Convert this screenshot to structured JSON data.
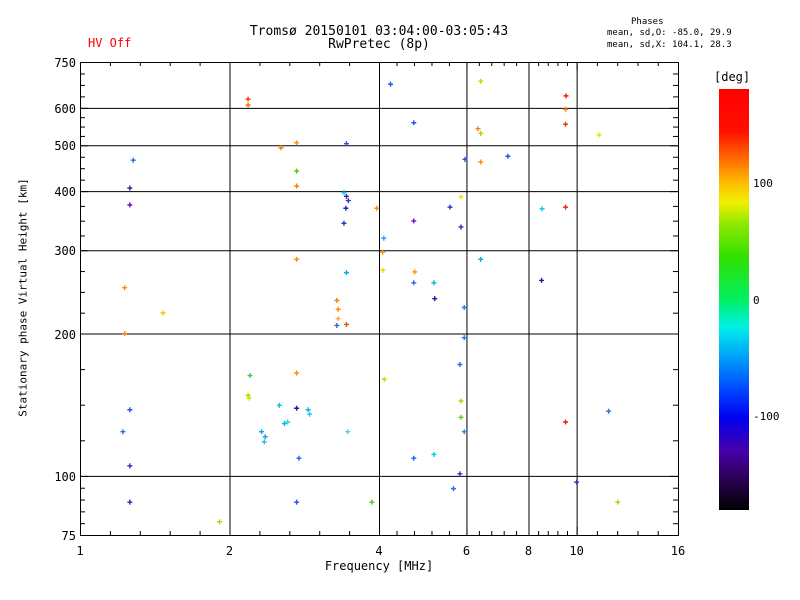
{
  "header": {
    "hv_status": "HV Off",
    "title": "Tromsø 20150101 03:04:00-03:05:43",
    "subtitle": "RwPretec (8p)",
    "phases_title": "Phases",
    "phases_mean_o": "mean, sd,O: -85.0, 29.9",
    "phases_mean_x": "mean, sd,X: 104.1, 28.3"
  },
  "colors": {
    "hv_status_red": "#ff0000",
    "axis_black": "#000000",
    "background": "#ffffff"
  },
  "chart_data": {
    "type": "scatter",
    "title": "Tromsø 20150101 03:04:00-03:05:43",
    "subtitle": "RwPretec (8p)",
    "xlabel": "Frequency [MHz]",
    "ylabel": "Stationary phase Virtual Height [km]",
    "xscale": "log",
    "yscale": "log",
    "xlim": [
      1,
      16
    ],
    "ylim": [
      75,
      750
    ],
    "xticks": [
      1,
      2,
      4,
      6,
      8,
      10,
      16
    ],
    "yticks": [
      750,
      600,
      500,
      400,
      300,
      200,
      100,
      75
    ],
    "grid_x": [
      2,
      4,
      6,
      8,
      10
    ],
    "grid_y": [
      600,
      500,
      400,
      300,
      200,
      100
    ],
    "minor_ticks_per_x_interval": 4,
    "minor_ticks_per_y_interval": [
      3,
      3,
      3,
      3,
      3,
      3,
      4
    ],
    "colorbar": {
      "label": "[deg]",
      "ticks": [
        100,
        0,
        -100
      ],
      "range": [
        -180,
        180
      ],
      "gradient_stops": [
        [
          0.0,
          "#ff0000"
        ],
        [
          0.1,
          "#ff1000"
        ],
        [
          0.17,
          "#ff7000"
        ],
        [
          0.225,
          "#ffc000"
        ],
        [
          0.27,
          "#f0f000"
        ],
        [
          0.32,
          "#90e800"
        ],
        [
          0.4,
          "#30e000"
        ],
        [
          0.5,
          "#00f060"
        ],
        [
          0.565,
          "#00f0e8"
        ],
        [
          0.63,
          "#00a8f8"
        ],
        [
          0.72,
          "#0040ff"
        ],
        [
          0.78,
          "#0000f0"
        ],
        [
          0.86,
          "#4800a8"
        ],
        [
          0.93,
          "#280050"
        ],
        [
          1.0,
          "#000000"
        ]
      ]
    },
    "points_columns": [
      "freq_mhz",
      "height_km",
      "color"
    ],
    "points": [
      [
        1.28,
        465,
        "#1c6ef0"
      ],
      [
        1.26,
        406,
        "#4a0d9e"
      ],
      [
        1.26,
        374,
        "#5a10b0"
      ],
      [
        1.23,
        250,
        "#ff8c00"
      ],
      [
        1.47,
        221,
        "#ffc400"
      ],
      [
        1.23,
        200,
        "#ff8c00"
      ],
      [
        1.26,
        138,
        "#2a52e8"
      ],
      [
        1.22,
        124,
        "#2a6cf0"
      ],
      [
        1.26,
        105,
        "#3a2fbf"
      ],
      [
        1.26,
        88,
        "#4a1da8"
      ],
      [
        1.91,
        80,
        "#b8d400"
      ],
      [
        2.18,
        626,
        "#f04000"
      ],
      [
        2.18,
        608,
        "#ff6a00"
      ],
      [
        2.73,
        506,
        "#ff8c00"
      ],
      [
        2.54,
        494,
        "#ff7a00"
      ],
      [
        3.44,
        504,
        "#2a52e8"
      ],
      [
        2.73,
        441,
        "#58c800"
      ],
      [
        2.73,
        410,
        "#ff7a00"
      ],
      [
        3.4,
        397,
        "#00c8f0"
      ],
      [
        3.44,
        390,
        "#5a10b0"
      ],
      [
        3.47,
        382,
        "#2a3ad0"
      ],
      [
        3.43,
        368,
        "#1a28b8"
      ],
      [
        3.96,
        368,
        "#ff8c00"
      ],
      [
        3.4,
        342,
        "#1a35c0"
      ],
      [
        4.09,
        318,
        "#38a0ff"
      ],
      [
        4.07,
        297,
        "#ff9a00"
      ],
      [
        4.07,
        272,
        "#e8dc00"
      ],
      [
        3.44,
        269,
        "#00aaf0"
      ],
      [
        2.73,
        287,
        "#ff8c00"
      ],
      [
        3.29,
        235,
        "#ff7a00"
      ],
      [
        3.31,
        225,
        "#ff8c00"
      ],
      [
        3.31,
        215,
        "#ffaa30"
      ],
      [
        3.29,
        208,
        "#2a6ce0"
      ],
      [
        3.44,
        209,
        "#f05000"
      ],
      [
        2.2,
        163,
        "#38c858"
      ],
      [
        2.73,
        165,
        "#ff8c00"
      ],
      [
        4.1,
        160,
        "#ccd800"
      ],
      [
        2.18,
        148,
        "#aadd00"
      ],
      [
        2.19,
        146,
        "#cce800"
      ],
      [
        2.52,
        141,
        "#00c8dd"
      ],
      [
        2.73,
        139,
        "#1518a0"
      ],
      [
        2.88,
        138,
        "#00b8ee"
      ],
      [
        2.9,
        135,
        "#30c8ee"
      ],
      [
        2.58,
        129,
        "#00b8ee"
      ],
      [
        2.62,
        130,
        "#44ccee"
      ],
      [
        2.32,
        124,
        "#00aaee"
      ],
      [
        2.36,
        121,
        "#2a9aee"
      ],
      [
        2.35,
        118,
        "#30bbee"
      ],
      [
        3.46,
        124,
        "#55ccee"
      ],
      [
        2.76,
        109,
        "#1a66ee"
      ],
      [
        2.73,
        88,
        "#2a52dd"
      ],
      [
        3.87,
        88,
        "#55c822"
      ],
      [
        4.22,
        673,
        "#2a52e8"
      ],
      [
        6.41,
        683,
        "#d4d400"
      ],
      [
        4.7,
        558,
        "#2a52e8"
      ],
      [
        6.33,
        542,
        "#ff7a33"
      ],
      [
        6.41,
        530,
        "#b8d400"
      ],
      [
        5.96,
        467,
        "#2a44ee"
      ],
      [
        7.27,
        474,
        "#2a52e8"
      ],
      [
        6.41,
        461,
        "#ff8c00"
      ],
      [
        5.85,
        389,
        "#e8e800"
      ],
      [
        5.56,
        370,
        "#2a35bb"
      ],
      [
        4.7,
        346,
        "#6a14bb"
      ],
      [
        5.85,
        336,
        "#3a28aa"
      ],
      [
        4.72,
        270,
        "#ff9a00"
      ],
      [
        4.7,
        256,
        "#2a6cee"
      ],
      [
        5.16,
        256,
        "#00b8dd"
      ],
      [
        5.18,
        237,
        "#35129a"
      ],
      [
        6.41,
        287,
        "#00aaee"
      ],
      [
        5.94,
        227,
        "#2a7aee"
      ],
      [
        5.94,
        196,
        "#2a7aee"
      ],
      [
        5.82,
        172,
        "#2a6cee"
      ],
      [
        5.85,
        144,
        "#aadd00"
      ],
      [
        5.85,
        133,
        "#66cc33"
      ],
      [
        5.94,
        124,
        "#2a88ee"
      ],
      [
        4.7,
        109,
        "#1a66ee"
      ],
      [
        5.16,
        111,
        "#00ccee"
      ],
      [
        5.82,
        101,
        "#2a35bb"
      ],
      [
        5.65,
        94,
        "#2a6cee"
      ],
      [
        9.52,
        636,
        "#ee2200"
      ],
      [
        9.5,
        596,
        "#ff7a00"
      ],
      [
        9.5,
        554,
        "#ee3300"
      ],
      [
        11.1,
        526,
        "#e8e800"
      ],
      [
        8.52,
        367,
        "#00ccee"
      ],
      [
        9.5,
        370,
        "#ee2200"
      ],
      [
        8.5,
        259,
        "#15229a"
      ],
      [
        9.5,
        130,
        "#ee2200"
      ],
      [
        11.6,
        137,
        "#2a6cee"
      ],
      [
        10.0,
        97,
        "#2a35bb"
      ],
      [
        12.1,
        88,
        "#aacc22"
      ]
    ]
  }
}
